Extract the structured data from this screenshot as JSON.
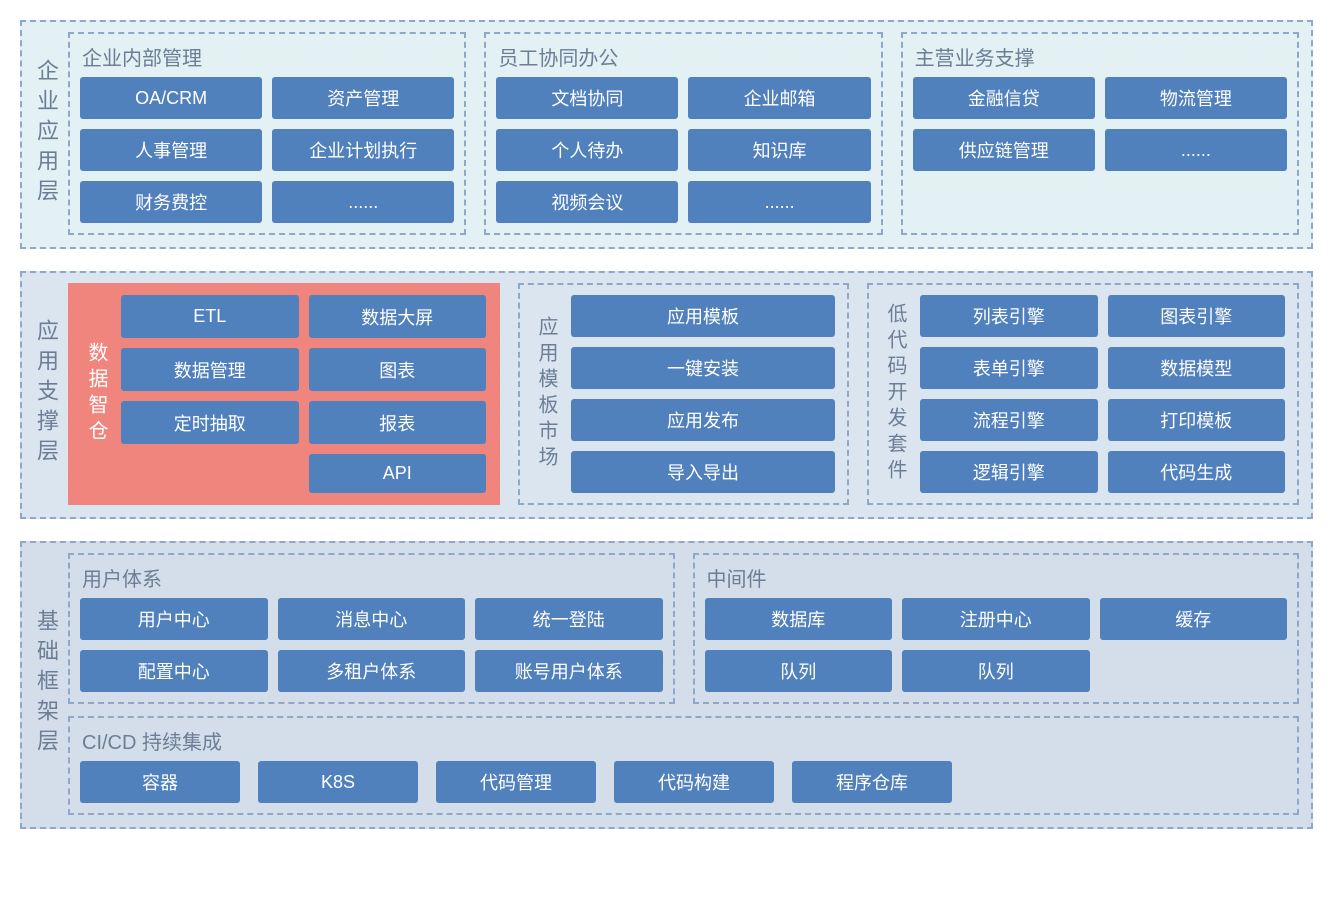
{
  "colors": {
    "item_bg": "#5081bd",
    "item_text": "#ffffff",
    "layer_border": "#8fa8c7",
    "label_text": "#6b7e96",
    "layer1_bg": "#e3f0f4",
    "layer2_bg": "#dbe5ef",
    "layer3_bg": "#d3deea",
    "highlight_bg": "#ef857d"
  },
  "layer1": {
    "label": "企业应用层",
    "groups": [
      {
        "title": "企业内部管理",
        "items": [
          "OA/CRM",
          "资产管理",
          "人事管理",
          "企业计划执行",
          "财务费控",
          "......"
        ]
      },
      {
        "title": "员工协同办公",
        "items": [
          "文档协同",
          "企业邮箱",
          "个人待办",
          "知识库",
          "视频会议",
          "......"
        ]
      },
      {
        "title": "主营业务支撑",
        "items": [
          "金融信贷",
          "物流管理",
          "供应链管理",
          "......"
        ]
      }
    ]
  },
  "layer2": {
    "label": "应用支撑层",
    "groups": [
      {
        "vlabel": "数据智仓",
        "highlight": true,
        "grid": [
          [
            "ETL",
            "数据大屏"
          ],
          [
            "数据管理",
            "图表"
          ],
          [
            "定时抽取",
            "报表"
          ],
          [
            null,
            "API"
          ]
        ]
      },
      {
        "vlabel": "应用模板市场",
        "items": [
          "应用模板",
          "一键安装",
          "应用发布",
          "导入导出"
        ]
      },
      {
        "vlabel": "低代码开发套件",
        "cols": 2,
        "items": [
          "列表引擎",
          "图表引擎",
          "表单引擎",
          "数据模型",
          "流程引擎",
          "打印模板",
          "逻辑引擎",
          "代码生成"
        ]
      }
    ]
  },
  "layer3": {
    "label": "基础框架层",
    "row1": [
      {
        "title": "用户体系",
        "items": [
          "用户中心",
          "消息中心",
          "统一登陆",
          "配置中心",
          "多租户体系",
          "账号用户体系"
        ]
      },
      {
        "title": "中间件",
        "items": [
          "数据库",
          "注册中心",
          "缓存",
          "队列",
          "队列"
        ]
      }
    ],
    "row2": {
      "title": "CI/CD 持续集成",
      "items": [
        "容器",
        "K8S",
        "代码管理",
        "代码构建",
        "程序仓库"
      ]
    }
  }
}
